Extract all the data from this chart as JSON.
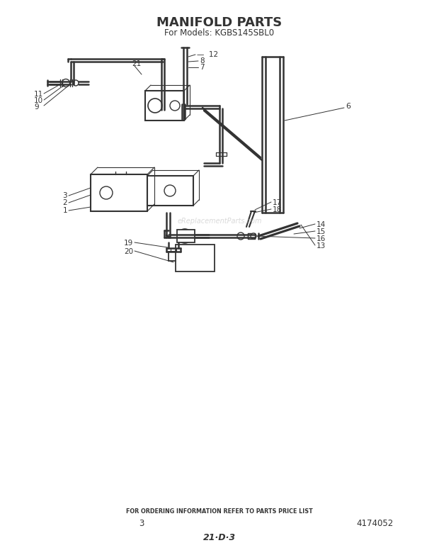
{
  "title": "MANIFOLD PARTS",
  "subtitle": "For Models: KGBS145SBL0",
  "footer_text": "FOR ORDERING INFORMATION REFER TO PARTS PRICE LIST",
  "footer_num": "3",
  "footer_code": "4174052",
  "footer_bottom": "21·D·3",
  "watermark": "eReplacementParts.com",
  "bg_color": "#ffffff",
  "lc": "#333333"
}
